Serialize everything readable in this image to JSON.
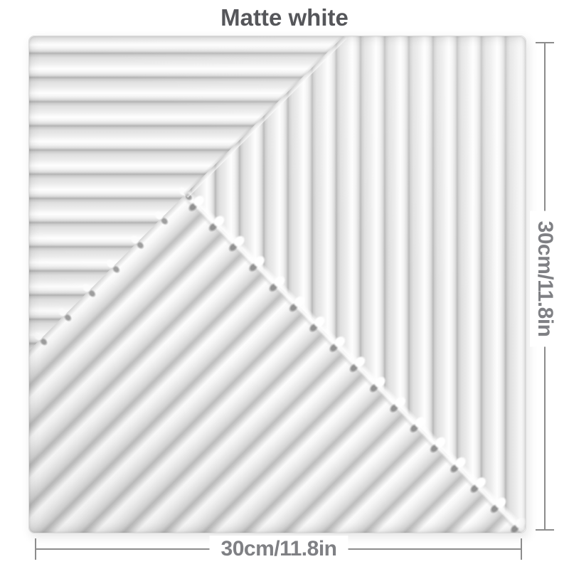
{
  "page": {
    "background": "#ffffff",
    "title": "Matte white"
  },
  "panel": {
    "alt": "Matte white 3D wall panel: horizontal ribs in the top-left corner frames, vertical ribs on the right, diagonal ribs with rounded tips across the bottom-left half"
  },
  "dimensions": {
    "width_label": "30cm/11.8in",
    "height_label": "30cm/11.8in"
  },
  "colors": {
    "title": "#55565a",
    "label": "#7f8084",
    "line": "#8c8c8c",
    "panel-base": "#ececec",
    "panel-border": "#dcdcdc"
  }
}
